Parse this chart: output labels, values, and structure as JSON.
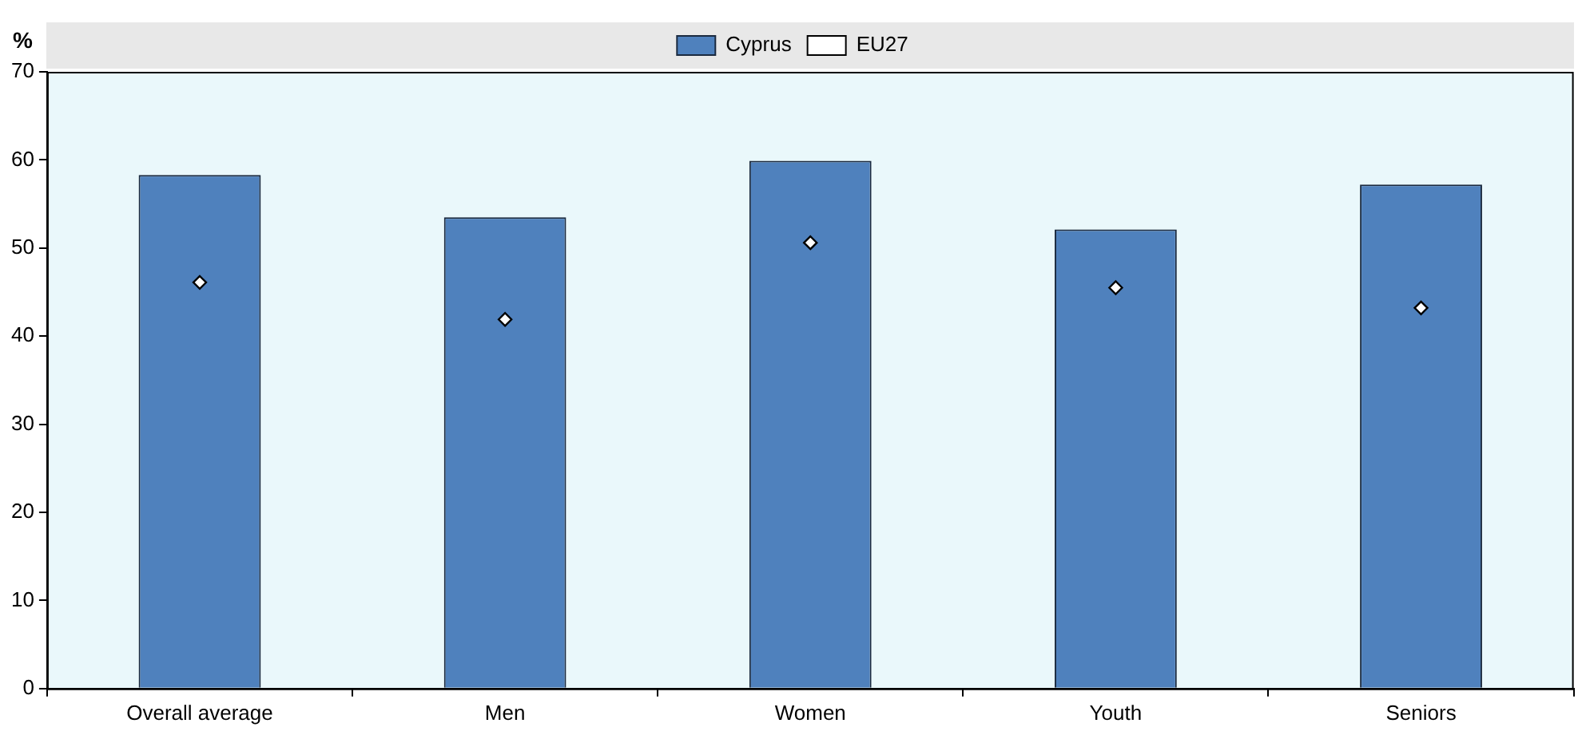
{
  "chart_data": {
    "type": "bar",
    "ylabel": "%",
    "categories": [
      "Overall average",
      "Men",
      "Women",
      "Youth",
      "Seniors"
    ],
    "series": [
      {
        "name": "Cyprus",
        "color": "#4f81bd",
        "values": [
          58.3,
          53.5,
          59.9,
          52.1,
          57.2
        ]
      },
      {
        "name": "EU27",
        "type": "scatter",
        "color": "#ffffff",
        "marker": "diamond",
        "values": [
          46.1,
          41.9,
          50.6,
          45.5,
          43.2
        ]
      }
    ],
    "ylim": [
      0,
      70
    ],
    "yticks": [
      0,
      10,
      20,
      30,
      40,
      50,
      60,
      70
    ],
    "legend": "top"
  }
}
